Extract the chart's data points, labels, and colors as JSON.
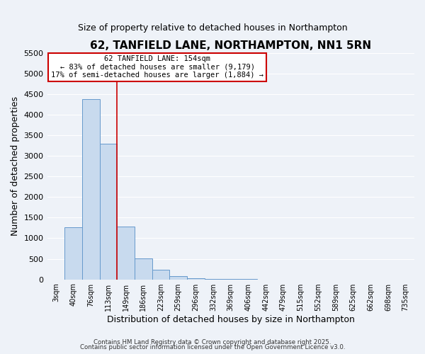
{
  "title": "62, TANFIELD LANE, NORTHAMPTON, NN1 5RN",
  "subtitle": "Size of property relative to detached houses in Northampton",
  "xlabel": "Distribution of detached houses by size in Northampton",
  "ylabel": "Number of detached properties",
  "bar_labels": [
    "3sqm",
    "40sqm",
    "76sqm",
    "113sqm",
    "149sqm",
    "186sqm",
    "223sqm",
    "259sqm",
    "296sqm",
    "332sqm",
    "369sqm",
    "406sqm",
    "442sqm",
    "479sqm",
    "515sqm",
    "552sqm",
    "589sqm",
    "625sqm",
    "662sqm",
    "698sqm",
    "735sqm"
  ],
  "bar_values": [
    0,
    1270,
    4380,
    3300,
    1290,
    505,
    230,
    75,
    25,
    8,
    3,
    2,
    0,
    0,
    0,
    0,
    0,
    0,
    0,
    0,
    0
  ],
  "bar_color": "#c8daee",
  "bar_edge_color": "#6699cc",
  "vline_index": 4,
  "vline_color": "#cc0000",
  "annotation_title": "62 TANFIELD LANE: 154sqm",
  "annotation_line1": "← 83% of detached houses are smaller (9,179)",
  "annotation_line2": "17% of semi-detached houses are larger (1,884) →",
  "annotation_box_facecolor": "#ffffff",
  "annotation_box_edgecolor": "#cc0000",
  "ylim": [
    0,
    5500
  ],
  "yticks": [
    0,
    500,
    1000,
    1500,
    2000,
    2500,
    3000,
    3500,
    4000,
    4500,
    5000,
    5500
  ],
  "background_color": "#eef2f8",
  "grid_color": "#ffffff",
  "footer1": "Contains HM Land Registry data © Crown copyright and database right 2025.",
  "footer2": "Contains public sector information licensed under the Open Government Licence v3.0."
}
